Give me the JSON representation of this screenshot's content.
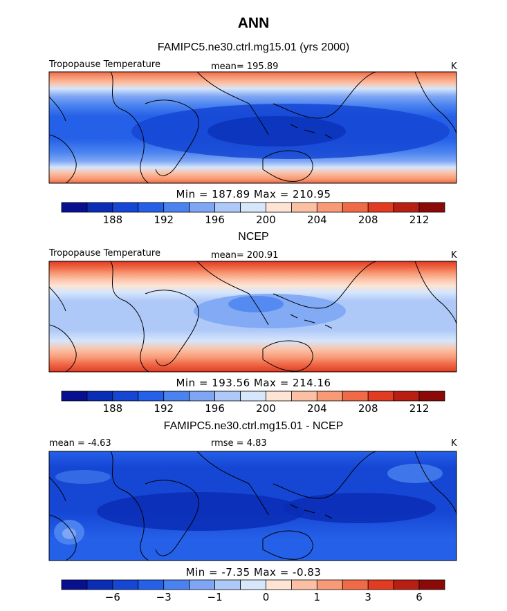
{
  "title": "ANN",
  "panels": [
    {
      "title": "FAMIPC5.ne30.ctrl.mg15.01 (yrs 2000)",
      "label_left": "Tropopause Temperature",
      "label_mid": "mean= 195.89",
      "units": "K",
      "minmax": "Min = 187.89 Max = 210.95",
      "colorbar_ticks": [
        "188",
        "192",
        "196",
        "200",
        "204",
        "208",
        "212"
      ]
    },
    {
      "title": "NCEP",
      "label_left": "Tropopause Temperature",
      "label_mid": "mean= 200.91",
      "units": "K",
      "minmax": "Min = 193.56 Max = 214.16",
      "colorbar_ticks": [
        "188",
        "192",
        "196",
        "200",
        "204",
        "208",
        "212"
      ]
    },
    {
      "title": "FAMIPC5.ne30.ctrl.mg15.01 - NCEP",
      "label_left": "mean = -4.63",
      "label_mid": "rmse = 4.83",
      "units": "K",
      "minmax": "Min = -7.35 Max = -0.83",
      "colorbar_ticks": [
        "−6",
        "−3",
        "−1",
        "0",
        "1",
        "3",
        "6"
      ]
    }
  ],
  "colors": {
    "palette": [
      "#08108f",
      "#0a2db5",
      "#1546d4",
      "#2560e8",
      "#4a83f0",
      "#7ea6f4",
      "#aec8f8",
      "#d6e6fb",
      "#fde4d4",
      "#fbc0a4",
      "#f89a76",
      "#f06a48",
      "#e13b22",
      "#b81e12",
      "#8b0a08"
    ]
  }
}
